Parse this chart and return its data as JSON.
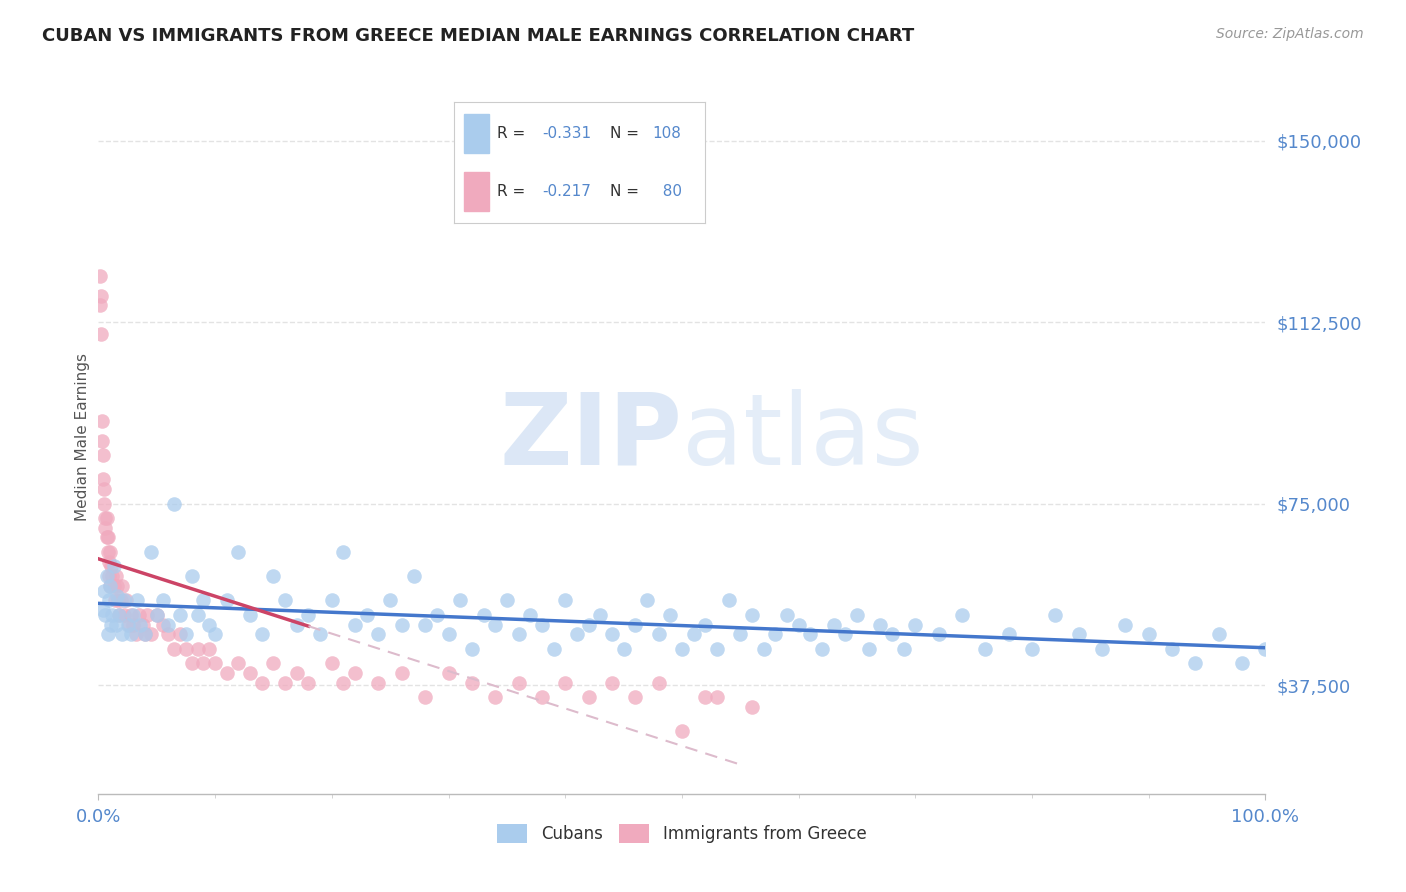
{
  "title": "CUBAN VS IMMIGRANTS FROM GREECE MEDIAN MALE EARNINGS CORRELATION CHART",
  "source": "Source: ZipAtlas.com",
  "ylabel": "Median Male Earnings",
  "x_min": 0.0,
  "x_max": 1.0,
  "y_min": 15000,
  "y_max": 162500,
  "y_ticks": [
    37500,
    75000,
    112500,
    150000
  ],
  "y_tick_labels": [
    "$37,500",
    "$75,000",
    "$112,500",
    "$150,000"
  ],
  "color_blue": "#aacced",
  "color_pink": "#f0aabe",
  "line_blue": "#4477cc",
  "line_pink": "#cc4466",
  "line_dashed_color": "#ddbbcc",
  "watermark_zip": "ZIP",
  "watermark_atlas": "atlas",
  "background_color": "#ffffff",
  "title_color": "#222222",
  "source_color": "#999999",
  "axis_tick_color": "#5588cc",
  "legend_value_color": "#5588cc",
  "legend_label_color": "#333333",
  "cubans_x": [
    0.004,
    0.005,
    0.006,
    0.007,
    0.008,
    0.009,
    0.01,
    0.011,
    0.012,
    0.013,
    0.015,
    0.016,
    0.018,
    0.02,
    0.022,
    0.025,
    0.028,
    0.03,
    0.033,
    0.036,
    0.04,
    0.045,
    0.05,
    0.055,
    0.06,
    0.065,
    0.07,
    0.075,
    0.08,
    0.085,
    0.09,
    0.095,
    0.1,
    0.11,
    0.12,
    0.13,
    0.14,
    0.15,
    0.16,
    0.17,
    0.18,
    0.19,
    0.2,
    0.21,
    0.22,
    0.23,
    0.24,
    0.25,
    0.26,
    0.27,
    0.28,
    0.29,
    0.3,
    0.31,
    0.32,
    0.33,
    0.34,
    0.35,
    0.36,
    0.37,
    0.38,
    0.39,
    0.4,
    0.41,
    0.42,
    0.43,
    0.44,
    0.45,
    0.46,
    0.47,
    0.48,
    0.49,
    0.5,
    0.51,
    0.52,
    0.53,
    0.54,
    0.55,
    0.56,
    0.57,
    0.58,
    0.59,
    0.6,
    0.61,
    0.62,
    0.63,
    0.64,
    0.65,
    0.66,
    0.67,
    0.68,
    0.69,
    0.7,
    0.72,
    0.74,
    0.76,
    0.78,
    0.8,
    0.82,
    0.84,
    0.86,
    0.88,
    0.9,
    0.92,
    0.94,
    0.96,
    0.98,
    1.0
  ],
  "cubans_y": [
    53000,
    57000,
    52000,
    60000,
    48000,
    55000,
    58000,
    50000,
    52000,
    62000,
    50000,
    56000,
    52000,
    48000,
    55000,
    50000,
    48000,
    52000,
    55000,
    50000,
    48000,
    65000,
    52000,
    55000,
    50000,
    75000,
    52000,
    48000,
    60000,
    52000,
    55000,
    50000,
    48000,
    55000,
    65000,
    52000,
    48000,
    60000,
    55000,
    50000,
    52000,
    48000,
    55000,
    65000,
    50000,
    52000,
    48000,
    55000,
    50000,
    60000,
    50000,
    52000,
    48000,
    55000,
    45000,
    52000,
    50000,
    55000,
    48000,
    52000,
    50000,
    45000,
    55000,
    48000,
    50000,
    52000,
    48000,
    45000,
    50000,
    55000,
    48000,
    52000,
    45000,
    48000,
    50000,
    45000,
    55000,
    48000,
    52000,
    45000,
    48000,
    52000,
    50000,
    48000,
    45000,
    50000,
    48000,
    52000,
    45000,
    50000,
    48000,
    45000,
    50000,
    48000,
    52000,
    45000,
    48000,
    45000,
    52000,
    48000,
    45000,
    50000,
    48000,
    45000,
    42000,
    48000,
    42000,
    45000
  ],
  "greece_x": [
    0.001,
    0.001,
    0.002,
    0.002,
    0.003,
    0.003,
    0.004,
    0.004,
    0.005,
    0.005,
    0.006,
    0.006,
    0.007,
    0.007,
    0.008,
    0.008,
    0.009,
    0.009,
    0.01,
    0.01,
    0.011,
    0.012,
    0.013,
    0.014,
    0.015,
    0.016,
    0.017,
    0.018,
    0.019,
    0.02,
    0.022,
    0.024,
    0.026,
    0.028,
    0.03,
    0.032,
    0.035,
    0.038,
    0.04,
    0.042,
    0.045,
    0.05,
    0.055,
    0.06,
    0.065,
    0.07,
    0.075,
    0.08,
    0.085,
    0.09,
    0.095,
    0.1,
    0.11,
    0.12,
    0.13,
    0.14,
    0.15,
    0.16,
    0.17,
    0.18,
    0.2,
    0.21,
    0.22,
    0.24,
    0.26,
    0.28,
    0.3,
    0.32,
    0.34,
    0.36,
    0.38,
    0.4,
    0.42,
    0.44,
    0.46,
    0.48,
    0.5,
    0.52,
    0.53,
    0.56
  ],
  "greece_y": [
    122000,
    116000,
    110000,
    118000,
    92000,
    88000,
    85000,
    80000,
    78000,
    75000,
    72000,
    70000,
    68000,
    72000,
    65000,
    68000,
    63000,
    60000,
    65000,
    58000,
    62000,
    60000,
    58000,
    55000,
    60000,
    58000,
    55000,
    52000,
    55000,
    58000,
    52000,
    55000,
    50000,
    52000,
    50000,
    48000,
    52000,
    50000,
    48000,
    52000,
    48000,
    52000,
    50000,
    48000,
    45000,
    48000,
    45000,
    42000,
    45000,
    42000,
    45000,
    42000,
    40000,
    42000,
    40000,
    38000,
    42000,
    38000,
    40000,
    38000,
    42000,
    38000,
    40000,
    38000,
    40000,
    35000,
    40000,
    38000,
    35000,
    38000,
    35000,
    38000,
    35000,
    38000,
    35000,
    38000,
    28000,
    35000,
    35000,
    33000
  ]
}
